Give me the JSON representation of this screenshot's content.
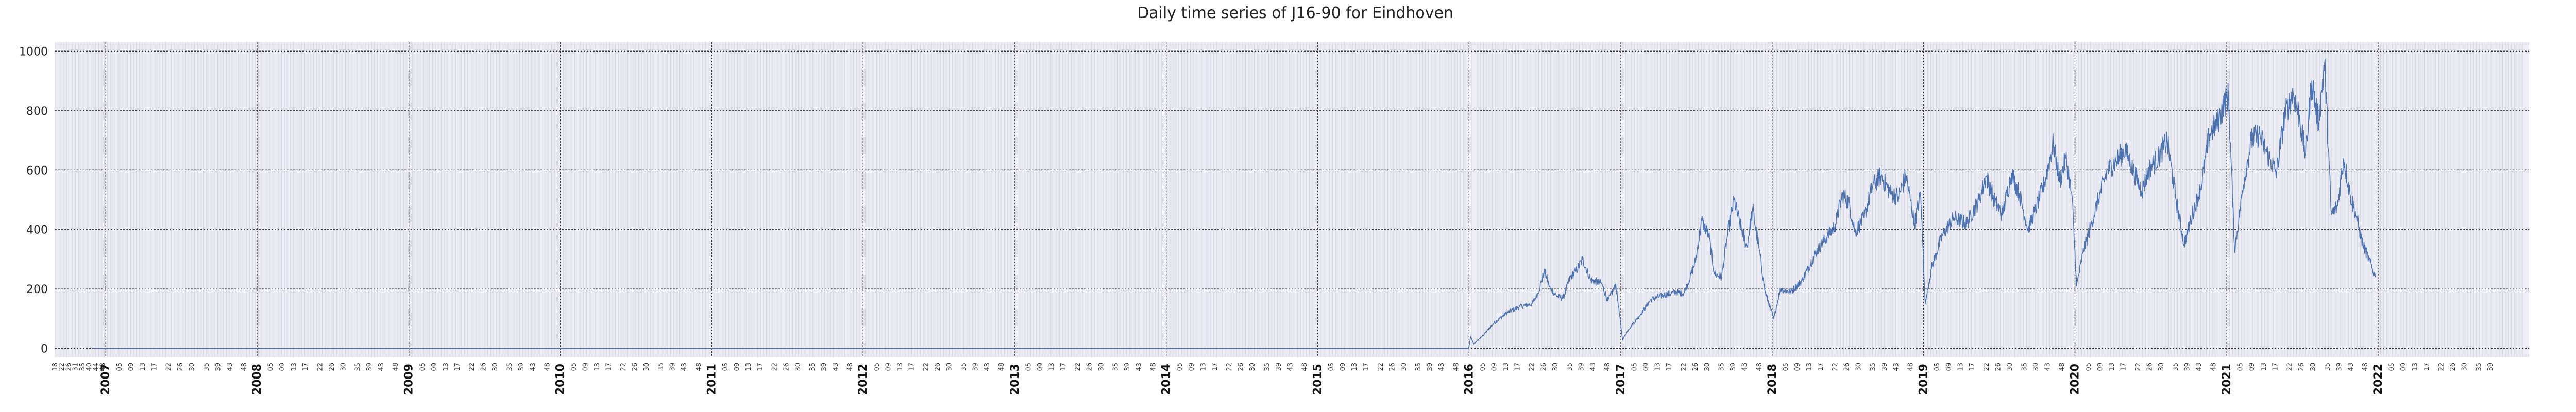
{
  "chart_data": {
    "type": "line",
    "title": "Daily time series of J16-90 for Eindhoven",
    "xlabel": "",
    "ylabel": "",
    "x_range": [
      "2006-09-01",
      "2022-12-31"
    ],
    "ylim": [
      -30,
      1030
    ],
    "yticks": [
      0,
      200,
      400,
      600,
      800,
      1000
    ],
    "year_ticks": [
      "2007",
      "2008",
      "2009",
      "2010",
      "2011",
      "2012",
      "2013",
      "2014",
      "2015",
      "2016",
      "2017",
      "2018",
      "2019",
      "2020",
      "2021",
      "2022"
    ],
    "week_tick_labels": [
      "05",
      "09",
      "13",
      "17",
      "22",
      "26",
      "30",
      "35",
      "39",
      "43",
      "48"
    ],
    "leading_week_labels": [
      "18",
      "22",
      "26",
      "31",
      "35",
      "40",
      "44",
      "48"
    ],
    "trailing_week_labels": [
      "05",
      "09",
      "13",
      "17",
      "22",
      "26",
      "30",
      "35",
      "39"
    ],
    "grid": true,
    "colors": {
      "line": "#4c72b0",
      "axes_bg": "#eaeaf2",
      "major_grid": "#333333",
      "minor_grid": "#ccccdd"
    },
    "series": [
      {
        "x": [
          "2006-12-01",
          "2015-12-31",
          "2016-01-05",
          "2016-01-12",
          "2016-02-01",
          "2016-03-01",
          "2016-04-01",
          "2016-05-01",
          "2016-06-01",
          "2016-06-15",
          "2016-07-01",
          "2016-07-15",
          "2016-08-01",
          "2016-08-15",
          "2016-09-01",
          "2016-09-15",
          "2016-10-01",
          "2016-10-20",
          "2016-11-15",
          "2016-12-01",
          "2016-12-20",
          "2017-01-05",
          "2017-01-20",
          "2017-02-15",
          "2017-03-15",
          "2017-04-15",
          "2017-05-15",
          "2017-06-01",
          "2017-06-15",
          "2017-07-01",
          "2017-07-15",
          "2017-08-01",
          "2017-08-15",
          "2017-09-01",
          "2017-09-15",
          "2017-10-01",
          "2017-10-15",
          "2017-11-01",
          "2017-11-15",
          "2017-12-01",
          "2017-12-15",
          "2018-01-05",
          "2018-01-20",
          "2018-02-15",
          "2018-03-15",
          "2018-04-15",
          "2018-05-15",
          "2018-06-01",
          "2018-06-20",
          "2018-07-05",
          "2018-07-20",
          "2018-08-10",
          "2018-09-01",
          "2018-09-20",
          "2018-10-15",
          "2018-11-01",
          "2018-11-20",
          "2018-12-10",
          "2018-12-25",
          "2019-01-05",
          "2019-01-20",
          "2019-02-15",
          "2019-03-15",
          "2019-04-15",
          "2019-05-15",
          "2019-06-01",
          "2019-06-20",
          "2019-07-10",
          "2019-08-01",
          "2019-08-20",
          "2019-09-10",
          "2019-10-01",
          "2019-10-20",
          "2019-11-10",
          "2019-11-25",
          "2019-12-10",
          "2019-12-25",
          "2020-01-05",
          "2020-01-20",
          "2020-02-10",
          "2020-03-01",
          "2020-03-20",
          "2020-04-10",
          "2020-05-01",
          "2020-05-20",
          "2020-06-10",
          "2020-07-01",
          "2020-07-20",
          "2020-08-10",
          "2020-09-01",
          "2020-09-20",
          "2020-10-10",
          "2020-11-01",
          "2020-11-20",
          "2020-12-10",
          "2020-12-25",
          "2021-01-05",
          "2021-01-20",
          "2021-02-10",
          "2021-03-01",
          "2021-03-20",
          "2021-04-10",
          "2021-05-01",
          "2021-05-20",
          "2021-06-10",
          "2021-06-25",
          "2021-07-10",
          "2021-07-25",
          "2021-08-10",
          "2021-08-25",
          "2021-09-10",
          "2021-09-25",
          "2021-10-10",
          "2021-10-25",
          "2021-11-10",
          "2021-11-25",
          "2021-12-10",
          "2021-12-25"
        ],
        "y": [
          0,
          0,
          40,
          15,
          40,
          85,
          120,
          140,
          150,
          185,
          260,
          200,
          175,
          170,
          240,
          260,
          300,
          230,
          220,
          160,
          215,
          30,
          65,
          110,
          165,
          180,
          190,
          185,
          230,
          300,
          430,
          380,
          250,
          240,
          380,
          500,
          420,
          340,
          470,
          330,
          190,
          100,
          200,
          190,
          230,
          320,
          380,
          410,
          520,
          490,
          390,
          440,
          550,
          580,
          520,
          510,
          580,
          420,
          520,
          150,
          270,
          380,
          440,
          420,
          500,
          580,
          500,
          450,
          590,
          520,
          400,
          480,
          560,
          690,
          560,
          640,
          510,
          210,
          320,
          420,
          520,
          600,
          630,
          670,
          600,
          530,
          610,
          640,
          700,
          500,
          350,
          450,
          550,
          720,
          760,
          820,
          850,
          330,
          550,
          700,
          720,
          650,
          590,
          780,
          860,
          780,
          650,
          900,
          760,
          960,
          450,
          480,
          640,
          520,
          440,
          350,
          300,
          240
        ]
      }
    ]
  }
}
